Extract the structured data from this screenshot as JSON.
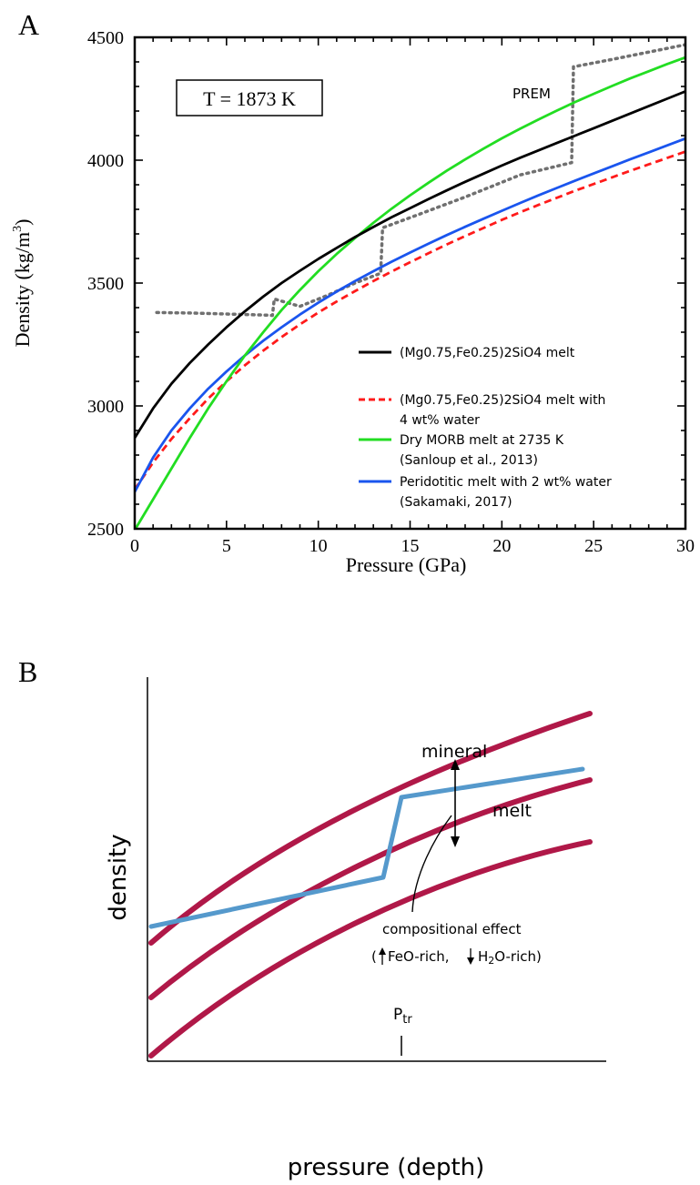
{
  "chart_data": [
    {
      "panel_label": "A",
      "type": "line",
      "xlabel": "Pressure (GPa)",
      "ylabel_main": "Density (kg/m",
      "ylabel_sup": "3",
      "ylabel_close": ")",
      "xlim": [
        0,
        30
      ],
      "ylim": [
        2500,
        4500
      ],
      "xticks": [
        "0",
        "5",
        "10",
        "15",
        "20",
        "25",
        "30"
      ],
      "yticks": [
        "2500",
        "3000",
        "3500",
        "4000",
        "4500"
      ],
      "grid": false,
      "box_label": "T = 1873 K",
      "prem_label": "PREM",
      "legend_position": "lower-right",
      "series": [
        {
          "name_lines": [
            "(Mg0.75,Fe0.25)2SiO4 melt"
          ],
          "color": "#000000",
          "style": "solid",
          "x": [
            0,
            1,
            2,
            3,
            4,
            5,
            6,
            7,
            8,
            9,
            10,
            11,
            12,
            13,
            14,
            15,
            16,
            17,
            18,
            19,
            20,
            21,
            22,
            23,
            24,
            25,
            26,
            27,
            28,
            29,
            30
          ],
          "y": [
            2870,
            2990,
            3090,
            3175,
            3250,
            3320,
            3385,
            3445,
            3500,
            3550,
            3598,
            3643,
            3687,
            3728,
            3768,
            3805,
            3842,
            3877,
            3912,
            3945,
            3978,
            4010,
            4040,
            4070,
            4100,
            4130,
            4160,
            4190,
            4220,
            4250,
            4280
          ]
        },
        {
          "name_lines": [
            "(Mg0.75,Fe0.25)2SiO4 melt with",
            "4 wt% water"
          ],
          "color": "#ff1a1a",
          "style": "dashed",
          "x": [
            0,
            1,
            2,
            3,
            4,
            5,
            6,
            7,
            8,
            9,
            10,
            11,
            12,
            13,
            14,
            15,
            16,
            17,
            18,
            19,
            20,
            21,
            22,
            23,
            24,
            25,
            26,
            27,
            28,
            29,
            30
          ],
          "y": [
            2660,
            2770,
            2865,
            2950,
            3030,
            3100,
            3165,
            3225,
            3280,
            3332,
            3380,
            3425,
            3467,
            3508,
            3547,
            3585,
            3621,
            3657,
            3691,
            3724,
            3757,
            3788,
            3818,
            3847,
            3876,
            3903,
            3930,
            3957,
            3983,
            4009,
            4035
          ]
        },
        {
          "name_lines": [
            "Dry MORB melt at 2735 K",
            "(Sanloup et al., 2013)"
          ],
          "color": "#22dd22",
          "style": "solid",
          "x": [
            0,
            1,
            2,
            3,
            4,
            5,
            6,
            7,
            8,
            9,
            10,
            11,
            12,
            13,
            14,
            15,
            16,
            17,
            18,
            19,
            20,
            21,
            22,
            23,
            24,
            25,
            26,
            27,
            28,
            29,
            30
          ],
          "y": [
            2495,
            2620,
            2745,
            2870,
            2990,
            3100,
            3205,
            3300,
            3390,
            3472,
            3548,
            3618,
            3683,
            3745,
            3803,
            3857,
            3908,
            3957,
            4003,
            4047,
            4089,
            4128,
            4166,
            4202,
            4237,
            4270,
            4302,
            4333,
            4362,
            4391,
            4418
          ]
        },
        {
          "name_lines": [
            "Peridotitic melt with 2 wt% water",
            "(Sakamaki, 2017)"
          ],
          "color": "#1a55ee",
          "style": "solid",
          "x": [
            0,
            1,
            2,
            3,
            4,
            5,
            6,
            7,
            8,
            9,
            10,
            11,
            12,
            13,
            14,
            15,
            16,
            17,
            18,
            19,
            20,
            21,
            22,
            23,
            24,
            25,
            26,
            27,
            28,
            29,
            30
          ],
          "y": [
            2650,
            2790,
            2900,
            2990,
            3070,
            3140,
            3205,
            3265,
            3320,
            3372,
            3420,
            3465,
            3508,
            3548,
            3587,
            3624,
            3660,
            3695,
            3729,
            3762,
            3794,
            3826,
            3857,
            3887,
            3917,
            3946,
            3975,
            4004,
            4032,
            4060,
            4088
          ]
        }
      ],
      "prem": {
        "color": "#707070",
        "style": "dotted",
        "x": [
          1.2,
          3.0,
          5.0,
          7.0,
          7.5,
          7.6,
          9.0,
          10.5,
          12.0,
          13.4,
          13.5,
          15.5,
          18.0,
          21.0,
          23.8,
          23.9,
          26.0,
          28.0,
          30.0
        ],
        "y": [
          3380,
          3378,
          3374,
          3370,
          3368,
          3435,
          3405,
          3450,
          3500,
          3540,
          3725,
          3780,
          3850,
          3940,
          3990,
          4380,
          4410,
          4440,
          4470
        ]
      }
    },
    {
      "panel_label": "B",
      "type": "line",
      "xlabel": "pressure (depth)",
      "ylabel": "density",
      "x_tick_label_main": "P",
      "x_tick_label_sub": "tr",
      "mineral_label": "mineral",
      "melt_label": "melt",
      "annotation_title": "compositional effect",
      "annotation_open": "(",
      "annotation_up": "FeO-rich,",
      "annotation_down_pre": "H",
      "annotation_down_sub": "2",
      "annotation_down_post": "O-rich)",
      "mineral_color": "#5599cc",
      "melt_color": "#b01848",
      "schematic": true
    }
  ]
}
